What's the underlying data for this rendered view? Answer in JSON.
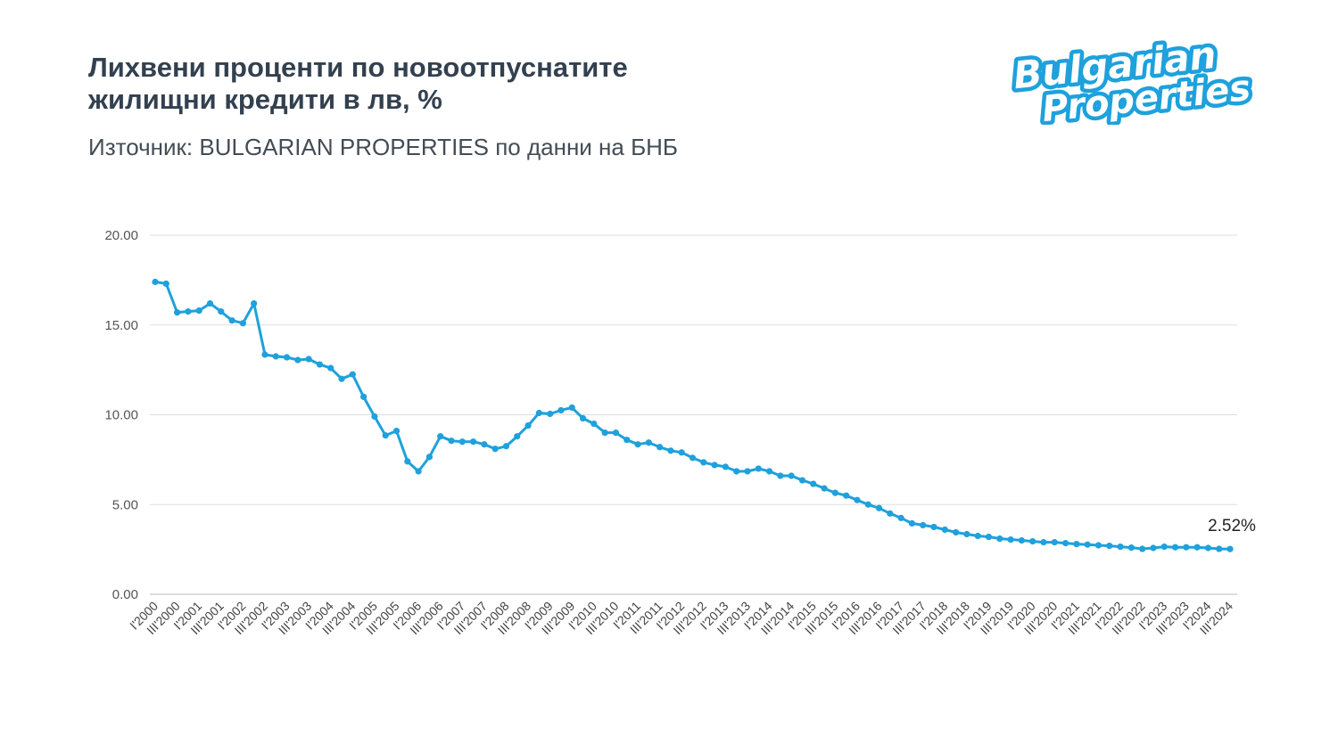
{
  "title_line1": "Лихвени проценти по новоотпуснатите",
  "title_line2": "жилищни кредити в лв, %",
  "subtitle": "Източник: BULGARIAN PROPERTIES по данни на БНБ",
  "logo": {
    "line1": "Bulgarian",
    "line2": "Properties"
  },
  "colors": {
    "series": "#1ea1dc",
    "title": "#33404f",
    "grid": "#dddddd"
  },
  "chart_data": {
    "type": "line",
    "frequency": "quarterly",
    "x_tick_labels": [
      "I'2000",
      "III'2000",
      "I'2001",
      "III'2001",
      "I'2002",
      "III'2002",
      "I'2003",
      "III'2003",
      "I'2004",
      "III'2004",
      "I'2005",
      "III'2005",
      "I'2006",
      "III'2006",
      "I'2007",
      "III'2007",
      "I'2008",
      "III'2008",
      "I'2009",
      "III'2009",
      "I'2010",
      "III'2010",
      "I'2011",
      "III'2011",
      "I'2012",
      "III'2012",
      "I'2013",
      "III'2013",
      "I'2014",
      "III'2014",
      "I'2015",
      "III'2015",
      "I'2016",
      "III'2016",
      "I'2017",
      "III'2017",
      "I'2018",
      "III'2018",
      "I'2019",
      "III'2019",
      "I'2020",
      "III'2020",
      "I'2021",
      "III'2021",
      "I'2022",
      "III'2022",
      "I'2023",
      "III'2023",
      "I'2024",
      "III'2024"
    ],
    "values": [
      17.4,
      17.3,
      15.7,
      15.75,
      15.8,
      16.2,
      15.75,
      15.25,
      15.1,
      16.2,
      13.35,
      13.25,
      13.2,
      13.05,
      13.1,
      12.8,
      12.6,
      12.0,
      12.25,
      11.0,
      9.9,
      8.85,
      9.1,
      7.4,
      6.85,
      7.65,
      8.8,
      8.55,
      8.5,
      8.5,
      8.35,
      8.1,
      8.25,
      8.8,
      9.4,
      10.1,
      10.05,
      10.25,
      10.4,
      9.8,
      9.5,
      9.0,
      9.0,
      8.6,
      8.35,
      8.45,
      8.2,
      8.0,
      7.9,
      7.6,
      7.35,
      7.2,
      7.1,
      6.85,
      6.85,
      7.0,
      6.85,
      6.6,
      6.6,
      6.35,
      6.15,
      5.9,
      5.65,
      5.5,
      5.25,
      5.0,
      4.8,
      4.5,
      4.25,
      3.95,
      3.85,
      3.75,
      3.6,
      3.45,
      3.35,
      3.25,
      3.2,
      3.1,
      3.05,
      3.0,
      2.95,
      2.9,
      2.9,
      2.85,
      2.8,
      2.77,
      2.73,
      2.7,
      2.65,
      2.6,
      2.53,
      2.58,
      2.65,
      2.62,
      2.62,
      2.62,
      2.58,
      2.53,
      2.52
    ],
    "y_ticks": [
      "0.00",
      "5.00",
      "10.00",
      "15.00",
      "20.00"
    ],
    "ylim": [
      0,
      20
    ],
    "grid": true,
    "last_label": "2.52%"
  }
}
